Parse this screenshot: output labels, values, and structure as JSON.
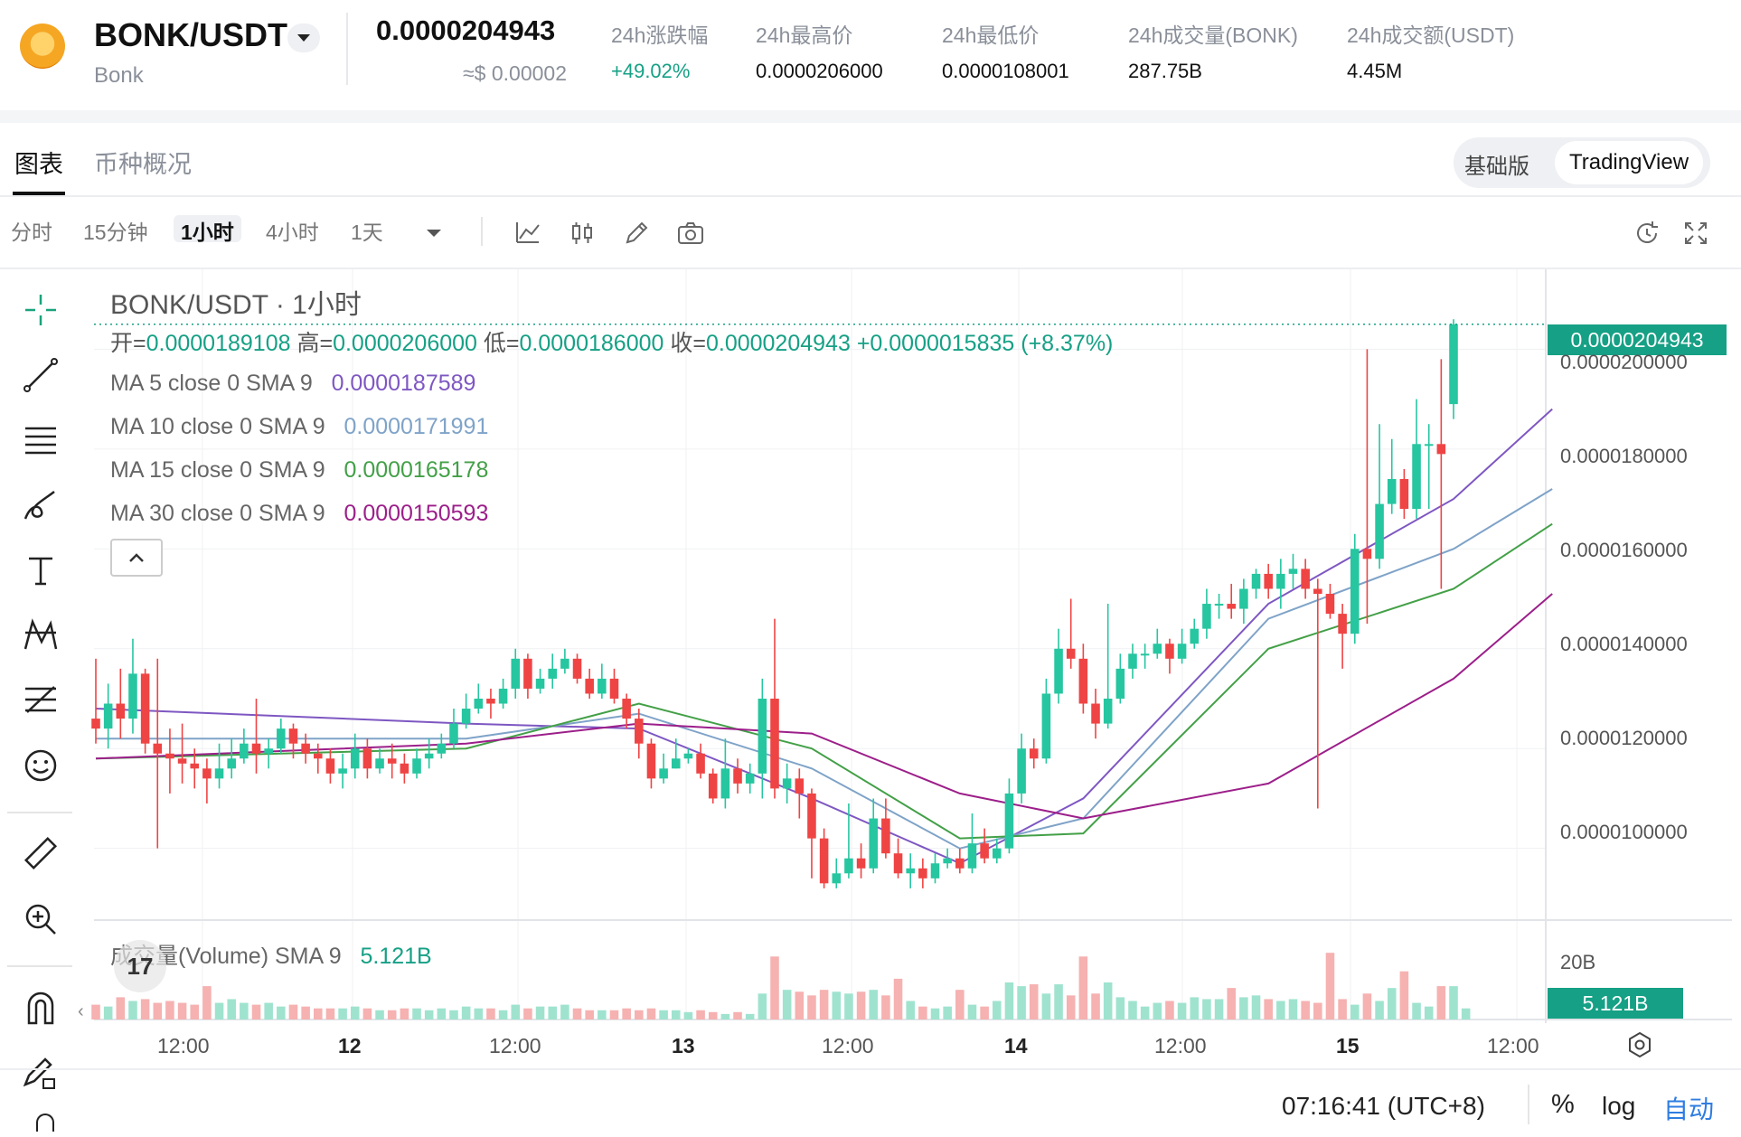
{
  "header": {
    "pair": "BONK/USDT",
    "name": "Bonk",
    "price": "0.0000204943",
    "price_usd": "≈$ 0.00002",
    "stats": [
      {
        "label": "24h涨跌幅",
        "value": "+49.02%",
        "positive": true
      },
      {
        "label": "24h最高价",
        "value": "0.0000206000"
      },
      {
        "label": "24h最低价",
        "value": "0.0000108001"
      },
      {
        "label": "24h成交量(BONK)",
        "value": "287.75B"
      },
      {
        "label": "24h成交额(USDT)",
        "value": "4.45M"
      }
    ]
  },
  "tabs": [
    "图表",
    "币种概况"
  ],
  "view_toggle": {
    "basic": "基础版",
    "tradingview": "TradingView"
  },
  "timeframes": [
    "分时",
    "15分钟",
    "1小时",
    "4小时",
    "1天"
  ],
  "active_timeframe": "1小时",
  "chart": {
    "title": "BONK/USDT · 1小时",
    "ohlc": {
      "open_label": "开=",
      "open": "0.0000189108",
      "high_label": "高=",
      "high": "0.0000206000",
      "low_label": "低=",
      "low": "0.0000186000",
      "close_label": "收=",
      "close": "0.0000204943",
      "change": "+0.0000015835 (+8.37%)"
    },
    "ma": [
      {
        "label": "MA 5 close 0 SMA 9",
        "value": "0.0000187589",
        "color": "#7e57c2"
      },
      {
        "label": "MA 10 close 0 SMA 9",
        "value": "0.0000171991",
        "color": "#7fa3c8"
      },
      {
        "label": "MA 15 close 0 SMA 9",
        "value": "0.0000165178",
        "color": "#43a047"
      },
      {
        "label": "MA 30 close 0 SMA 9",
        "value": "0.0000150593",
        "color": "#9c1f8a"
      }
    ],
    "current_price_tag": "0.0000204943",
    "y_axis": [
      "0.0000200000",
      "0.0000180000",
      "0.0000160000",
      "0.0000140000",
      "0.0000120000",
      "0.0000100000"
    ],
    "x_axis": [
      {
        "label": "12:00",
        "bold": false
      },
      {
        "label": "12",
        "bold": true
      },
      {
        "label": "12:00",
        "bold": false
      },
      {
        "label": "13",
        "bold": true
      },
      {
        "label": "12:00",
        "bold": false
      },
      {
        "label": "14",
        "bold": true
      },
      {
        "label": "12:00",
        "bold": false
      },
      {
        "label": "15",
        "bold": true
      },
      {
        "label": "12:00",
        "bold": false
      }
    ],
    "volume": {
      "label": "成交量(Volume) SMA 9",
      "value": "5.121B",
      "axis_label": "20B",
      "tag": "5.121B"
    },
    "up_color": "#26c6a0",
    "down_color": "#ef4444"
  },
  "chart_data": {
    "type": "candlestick",
    "title": "BONK/USDT · 1小时",
    "price_ylim": [
      8.6e-06,
      2.16e-05
    ],
    "volume_ylim": [
      0,
      20
    ],
    "candles": [
      [
        12.6,
        12.4,
        13.8,
        12.1
      ],
      [
        12.4,
        12.9,
        13.3,
        12.0
      ],
      [
        12.9,
        12.6,
        13.6,
        12.2
      ],
      [
        12.6,
        13.5,
        14.2,
        12.3
      ],
      [
        13.5,
        12.1,
        13.6,
        11.9
      ],
      [
        12.1,
        11.9,
        13.8,
        10.0
      ],
      [
        11.9,
        11.8,
        12.4,
        11.1
      ],
      [
        11.8,
        11.7,
        12.5,
        11.3
      ],
      [
        11.7,
        11.6,
        12.0,
        11.2
      ],
      [
        11.6,
        11.4,
        11.8,
        10.9
      ],
      [
        11.4,
        11.6,
        12.1,
        11.2
      ],
      [
        11.6,
        11.8,
        12.2,
        11.4
      ],
      [
        11.8,
        12.1,
        12.4,
        11.7
      ],
      [
        12.1,
        11.9,
        13.0,
        11.5
      ],
      [
        11.9,
        12.0,
        12.2,
        11.6
      ],
      [
        12.0,
        12.4,
        12.6,
        11.9
      ],
      [
        12.4,
        12.1,
        12.5,
        11.8
      ],
      [
        12.1,
        11.9,
        12.3,
        11.7
      ],
      [
        11.9,
        11.8,
        12.1,
        11.5
      ],
      [
        11.8,
        11.5,
        12.0,
        11.3
      ],
      [
        11.5,
        11.6,
        11.9,
        11.2
      ],
      [
        11.6,
        12.0,
        12.3,
        11.4
      ],
      [
        12.0,
        11.6,
        12.2,
        11.4
      ],
      [
        11.6,
        11.8,
        12.0,
        11.5
      ],
      [
        11.8,
        11.7,
        12.1,
        11.4
      ],
      [
        11.7,
        11.5,
        11.9,
        11.3
      ],
      [
        11.5,
        11.8,
        12.0,
        11.4
      ],
      [
        11.8,
        11.9,
        12.2,
        11.6
      ],
      [
        11.9,
        12.1,
        12.3,
        11.8
      ],
      [
        12.1,
        12.5,
        12.8,
        12.0
      ],
      [
        12.5,
        12.8,
        13.1,
        12.4
      ],
      [
        12.8,
        13.0,
        13.3,
        12.7
      ],
      [
        13.0,
        12.9,
        13.2,
        12.6
      ],
      [
        12.9,
        13.2,
        13.4,
        12.8
      ],
      [
        13.2,
        13.8,
        14.0,
        13.0
      ],
      [
        13.8,
        13.2,
        13.9,
        13.0
      ],
      [
        13.2,
        13.4,
        13.6,
        13.1
      ],
      [
        13.4,
        13.6,
        13.9,
        13.2
      ],
      [
        13.6,
        13.8,
        14.0,
        13.5
      ],
      [
        13.8,
        13.4,
        13.9,
        13.3
      ],
      [
        13.4,
        13.1,
        13.6,
        13.0
      ],
      [
        13.1,
        13.4,
        13.7,
        13.0
      ],
      [
        13.4,
        13.0,
        13.6,
        12.9
      ],
      [
        13.0,
        12.6,
        13.1,
        12.4
      ],
      [
        12.6,
        12.1,
        12.8,
        11.8
      ],
      [
        12.1,
        11.4,
        12.2,
        11.2
      ],
      [
        11.4,
        11.6,
        11.9,
        11.3
      ],
      [
        11.6,
        11.8,
        12.2,
        11.6
      ],
      [
        11.8,
        11.9,
        12.0,
        11.7
      ],
      [
        11.9,
        11.5,
        12.1,
        11.4
      ],
      [
        11.5,
        11.0,
        11.6,
        10.9
      ],
      [
        11.0,
        11.6,
        12.2,
        10.8
      ],
      [
        11.6,
        11.3,
        11.8,
        11.1
      ],
      [
        11.3,
        11.5,
        11.7,
        11.1
      ],
      [
        11.5,
        13.0,
        13.4,
        11.0
      ],
      [
        13.0,
        11.2,
        14.6,
        11.0
      ],
      [
        11.2,
        11.4,
        11.7,
        10.9
      ],
      [
        11.4,
        11.1,
        11.6,
        10.6
      ],
      [
        11.1,
        10.2,
        11.2,
        9.4
      ],
      [
        10.2,
        9.3,
        10.4,
        9.2
      ],
      [
        9.3,
        9.5,
        9.8,
        9.2
      ],
      [
        9.5,
        9.8,
        10.9,
        9.4
      ],
      [
        9.8,
        9.6,
        10.1,
        9.4
      ],
      [
        9.6,
        10.6,
        11.0,
        9.5
      ],
      [
        10.6,
        9.9,
        11.0,
        9.8
      ],
      [
        9.9,
        9.5,
        10.2,
        9.4
      ],
      [
        9.5,
        9.6,
        9.9,
        9.2
      ],
      [
        9.6,
        9.4,
        9.8,
        9.2
      ],
      [
        9.4,
        9.7,
        9.9,
        9.3
      ],
      [
        9.7,
        9.8,
        10.0,
        9.6
      ],
      [
        9.8,
        9.6,
        10.0,
        9.5
      ],
      [
        9.6,
        10.1,
        10.7,
        9.5
      ],
      [
        10.1,
        9.8,
        10.4,
        9.7
      ],
      [
        9.8,
        10.0,
        10.2,
        9.7
      ],
      [
        10.0,
        11.1,
        11.4,
        9.9
      ],
      [
        11.1,
        12.0,
        12.3,
        10.9
      ],
      [
        12.0,
        11.8,
        12.2,
        11.6
      ],
      [
        11.8,
        13.1,
        13.4,
        11.7
      ],
      [
        13.1,
        14.0,
        14.4,
        12.9
      ],
      [
        14.0,
        13.8,
        15.0,
        13.6
      ],
      [
        13.8,
        12.9,
        14.1,
        12.7
      ],
      [
        12.9,
        12.5,
        13.2,
        12.2
      ],
      [
        12.5,
        13.0,
        14.9,
        12.4
      ],
      [
        13.0,
        13.6,
        13.9,
        12.9
      ],
      [
        13.6,
        13.9,
        14.1,
        13.4
      ],
      [
        13.9,
        13.9,
        14.1,
        13.6
      ],
      [
        13.9,
        14.1,
        14.4,
        13.8
      ],
      [
        14.1,
        13.8,
        14.2,
        13.5
      ],
      [
        13.8,
        14.1,
        14.4,
        13.7
      ],
      [
        14.1,
        14.4,
        14.6,
        14.0
      ],
      [
        14.4,
        14.9,
        15.2,
        14.2
      ],
      [
        14.9,
        14.9,
        15.1,
        14.6
      ],
      [
        14.9,
        14.8,
        15.3,
        14.6
      ],
      [
        14.8,
        15.2,
        15.4,
        14.5
      ],
      [
        15.2,
        15.5,
        15.6,
        15.0
      ],
      [
        15.5,
        15.2,
        15.7,
        15.0
      ],
      [
        15.2,
        15.5,
        15.8,
        14.8
      ],
      [
        15.5,
        15.6,
        15.9,
        15.2
      ],
      [
        15.6,
        15.2,
        15.8,
        15.0
      ],
      [
        15.2,
        15.1,
        15.4,
        10.8
      ],
      [
        15.1,
        14.7,
        15.3,
        14.6
      ],
      [
        14.7,
        14.3,
        14.9,
        13.6
      ],
      [
        14.3,
        16.0,
        16.3,
        14.1
      ],
      [
        16.0,
        15.8,
        20.0,
        14.5
      ],
      [
        15.8,
        16.9,
        18.5,
        15.6
      ],
      [
        16.9,
        17.4,
        18.2,
        16.7
      ],
      [
        17.4,
        16.8,
        17.6,
        16.6
      ],
      [
        16.8,
        18.1,
        19.0,
        16.6
      ],
      [
        18.1,
        18.1,
        18.5,
        16.8
      ],
      [
        18.1,
        17.9,
        19.8,
        15.2
      ],
      [
        18.9,
        20.5,
        20.6,
        18.6
      ]
    ],
    "ma_series": [
      {
        "name": "MA 5",
        "color": "#7e57c2",
        "points": [
          [
            0,
            12.8
          ],
          [
            30,
            12.5
          ],
          [
            44,
            12.4
          ],
          [
            58,
            11.0
          ],
          [
            70,
            9.7
          ],
          [
            80,
            11.0
          ],
          [
            95,
            14.9
          ],
          [
            110,
            17.0
          ],
          [
            118,
            18.8
          ]
        ]
      },
      {
        "name": "MA 10",
        "color": "#7fa3c8",
        "points": [
          [
            0,
            12.2
          ],
          [
            30,
            12.2
          ],
          [
            44,
            12.7
          ],
          [
            58,
            11.6
          ],
          [
            70,
            10.0
          ],
          [
            80,
            10.6
          ],
          [
            95,
            14.6
          ],
          [
            110,
            16.0
          ],
          [
            118,
            17.2
          ]
        ]
      },
      {
        "name": "MA 15",
        "color": "#43a047",
        "points": [
          [
            0,
            11.8
          ],
          [
            30,
            12.0
          ],
          [
            44,
            12.9
          ],
          [
            58,
            12.0
          ],
          [
            70,
            10.2
          ],
          [
            80,
            10.3
          ],
          [
            95,
            14.0
          ],
          [
            110,
            15.2
          ],
          [
            118,
            16.5
          ]
        ]
      },
      {
        "name": "MA 30",
        "color": "#9c1f8a",
        "points": [
          [
            0,
            11.8
          ],
          [
            30,
            12.1
          ],
          [
            44,
            12.5
          ],
          [
            58,
            12.3
          ],
          [
            70,
            11.1
          ],
          [
            80,
            10.6
          ],
          [
            95,
            11.3
          ],
          [
            110,
            13.4
          ],
          [
            118,
            15.1
          ]
        ]
      }
    ],
    "volumes": [
      4,
      3.5,
      6,
      5,
      5.5,
      4.5,
      5,
      4.5,
      4,
      9,
      4.5,
      5.5,
      4.5,
      4,
      4.5,
      3.5,
      4,
      3.5,
      3,
      3,
      3,
      3.5,
      3,
      2.5,
      2.5,
      3,
      3,
      2.5,
      3,
      2.5,
      3.5,
      3,
      3,
      2.5,
      4,
      3,
      3.5,
      3.5,
      4,
      3,
      2.5,
      2.5,
      2.5,
      3,
      2.5,
      3,
      2.5,
      2.5,
      2,
      2.5,
      2,
      1.5,
      2,
      1.5,
      7,
      17,
      8,
      7.5,
      6.5,
      8,
      7.5,
      7,
      7.5,
      8,
      6.5,
      11,
      5,
      3.5,
      3,
      3.5,
      8,
      4,
      3.5,
      5,
      10,
      9,
      9.5,
      7,
      9.5,
      6.5,
      17,
      7,
      10,
      6,
      5,
      3.5,
      4.5,
      5,
      4.5,
      6,
      5.5,
      5.5,
      8.5,
      6,
      6.5,
      5.5,
      5,
      5.5,
      5,
      4.5,
      18,
      5.5,
      4,
      7,
      5,
      8.5,
      13,
      4.5,
      3.5,
      9,
      9,
      3
    ]
  },
  "status": {
    "clock": "07:16:41 (UTC+8)",
    "percent": "%",
    "log": "log",
    "auto": "自动"
  }
}
